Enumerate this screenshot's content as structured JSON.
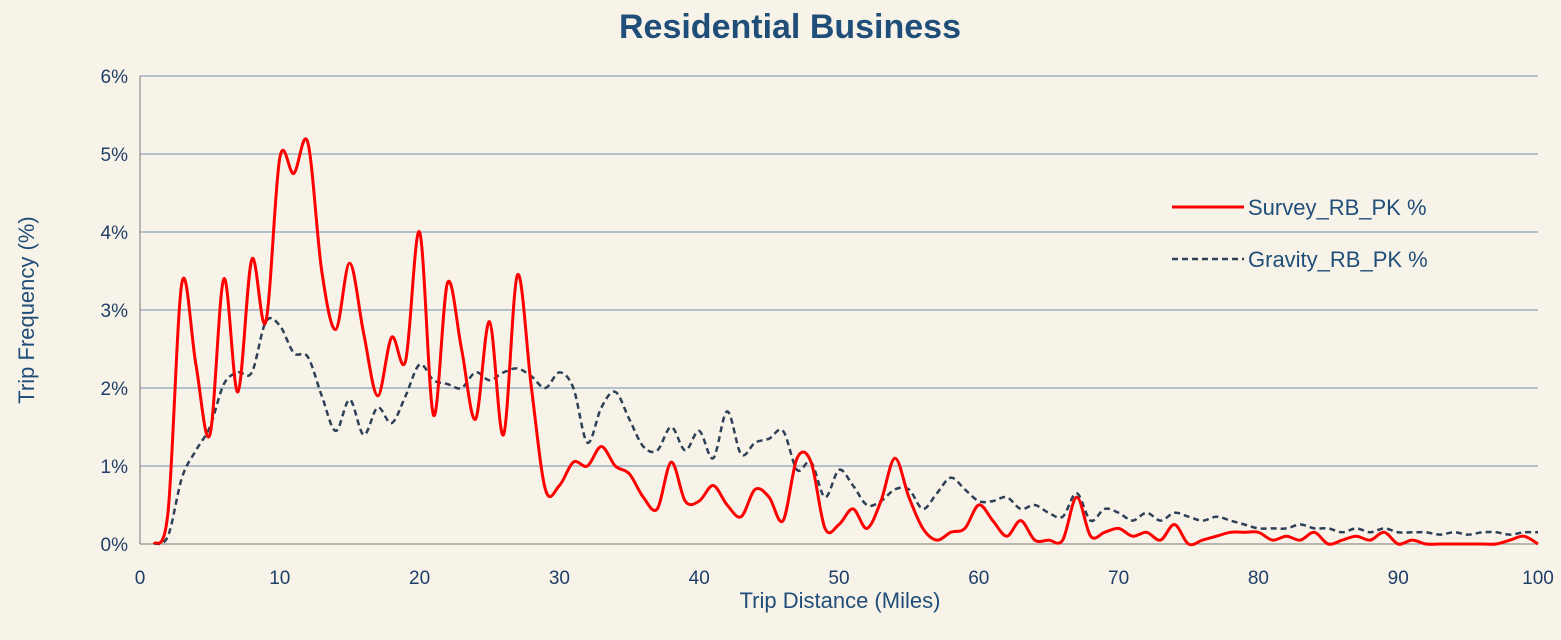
{
  "chart_data": {
    "type": "line",
    "title": "Residential Business",
    "xlabel": "Trip Distance (Miles)",
    "ylabel": "Trip Frequency (%)",
    "xlim": [
      0,
      100
    ],
    "ylim": [
      0,
      6
    ],
    "x_ticks": [
      "0",
      "10",
      "20",
      "30",
      "40",
      "50",
      "60",
      "70",
      "80",
      "90",
      "100"
    ],
    "y_ticks": [
      "0%",
      "1%",
      "2%",
      "3%",
      "4%",
      "5%",
      "6%"
    ],
    "grid": "horizontal",
    "legend_position": "right",
    "series": [
      {
        "name": "Survey_RB_PK %",
        "color": "#ff0000",
        "style": "solid",
        "x": [
          1,
          2,
          3,
          4,
          5,
          6,
          7,
          8,
          9,
          10,
          11,
          12,
          13,
          14,
          15,
          16,
          17,
          18,
          19,
          20,
          21,
          22,
          23,
          24,
          25,
          26,
          27,
          28,
          29,
          30,
          31,
          32,
          33,
          34,
          35,
          36,
          37,
          38,
          39,
          40,
          41,
          42,
          43,
          44,
          45,
          46,
          47,
          48,
          49,
          50,
          51,
          52,
          53,
          54,
          55,
          56,
          57,
          58,
          59,
          60,
          61,
          62,
          63,
          64,
          65,
          66,
          67,
          68,
          69,
          70,
          71,
          72,
          73,
          74,
          75,
          76,
          77,
          78,
          79,
          80,
          81,
          82,
          83,
          84,
          85,
          86,
          87,
          88,
          89,
          90,
          91,
          92,
          93,
          94,
          95,
          96,
          97,
          98,
          99,
          100
        ],
        "values": [
          0.0,
          0.4,
          3.35,
          2.3,
          1.4,
          3.4,
          1.95,
          3.65,
          2.85,
          4.95,
          4.75,
          5.15,
          3.5,
          2.75,
          3.6,
          2.7,
          1.9,
          2.65,
          2.35,
          4.0,
          1.65,
          3.35,
          2.5,
          1.6,
          2.85,
          1.4,
          3.45,
          2.0,
          0.7,
          0.75,
          1.05,
          1.0,
          1.25,
          1.0,
          0.9,
          0.6,
          0.45,
          1.05,
          0.55,
          0.55,
          0.75,
          0.5,
          0.35,
          0.7,
          0.6,
          0.3,
          1.1,
          1.05,
          0.2,
          0.25,
          0.45,
          0.2,
          0.55,
          1.1,
          0.6,
          0.2,
          0.05,
          0.15,
          0.2,
          0.5,
          0.3,
          0.1,
          0.3,
          0.05,
          0.05,
          0.05,
          0.6,
          0.1,
          0.15,
          0.2,
          0.1,
          0.15,
          0.05,
          0.25,
          0.0,
          0.05,
          0.1,
          0.15,
          0.15,
          0.15,
          0.05,
          0.1,
          0.05,
          0.15,
          0.0,
          0.05,
          0.1,
          0.05,
          0.15,
          0.0,
          0.05,
          0.0,
          0.0,
          0.0,
          0.0,
          0.0,
          0.0,
          0.05,
          0.1,
          0.0
        ]
      },
      {
        "name": "Gravity_RB_PK %",
        "color": "#2e4057",
        "style": "dashed",
        "x": [
          1,
          2,
          3,
          4,
          5,
          6,
          7,
          8,
          9,
          10,
          11,
          12,
          13,
          14,
          15,
          16,
          17,
          18,
          19,
          20,
          21,
          22,
          23,
          24,
          25,
          26,
          27,
          28,
          29,
          30,
          31,
          32,
          33,
          34,
          35,
          36,
          37,
          38,
          39,
          40,
          41,
          42,
          43,
          44,
          45,
          46,
          47,
          48,
          49,
          50,
          51,
          52,
          53,
          54,
          55,
          56,
          57,
          58,
          59,
          60,
          61,
          62,
          63,
          64,
          65,
          66,
          67,
          68,
          69,
          70,
          71,
          72,
          73,
          74,
          75,
          76,
          77,
          78,
          79,
          80,
          81,
          82,
          83,
          84,
          85,
          86,
          87,
          88,
          89,
          90,
          91,
          92,
          93,
          94,
          95,
          96,
          97,
          98,
          99,
          100
        ],
        "values": [
          0.0,
          0.1,
          0.85,
          1.2,
          1.5,
          2.05,
          2.2,
          2.2,
          2.85,
          2.8,
          2.45,
          2.4,
          1.9,
          1.45,
          1.85,
          1.4,
          1.75,
          1.55,
          1.9,
          2.3,
          2.1,
          2.05,
          2.0,
          2.2,
          2.1,
          2.2,
          2.25,
          2.15,
          2.0,
          2.2,
          2.0,
          1.3,
          1.75,
          1.95,
          1.6,
          1.25,
          1.2,
          1.5,
          1.2,
          1.45,
          1.1,
          1.7,
          1.15,
          1.3,
          1.35,
          1.45,
          0.95,
          1.05,
          0.6,
          0.95,
          0.75,
          0.5,
          0.55,
          0.7,
          0.7,
          0.45,
          0.65,
          0.85,
          0.7,
          0.55,
          0.55,
          0.6,
          0.45,
          0.5,
          0.4,
          0.35,
          0.65,
          0.3,
          0.45,
          0.4,
          0.3,
          0.4,
          0.3,
          0.4,
          0.35,
          0.3,
          0.35,
          0.3,
          0.25,
          0.2,
          0.2,
          0.2,
          0.25,
          0.2,
          0.2,
          0.15,
          0.2,
          0.15,
          0.2,
          0.15,
          0.15,
          0.15,
          0.12,
          0.15,
          0.12,
          0.15,
          0.15,
          0.12,
          0.15,
          0.15
        ]
      }
    ]
  }
}
